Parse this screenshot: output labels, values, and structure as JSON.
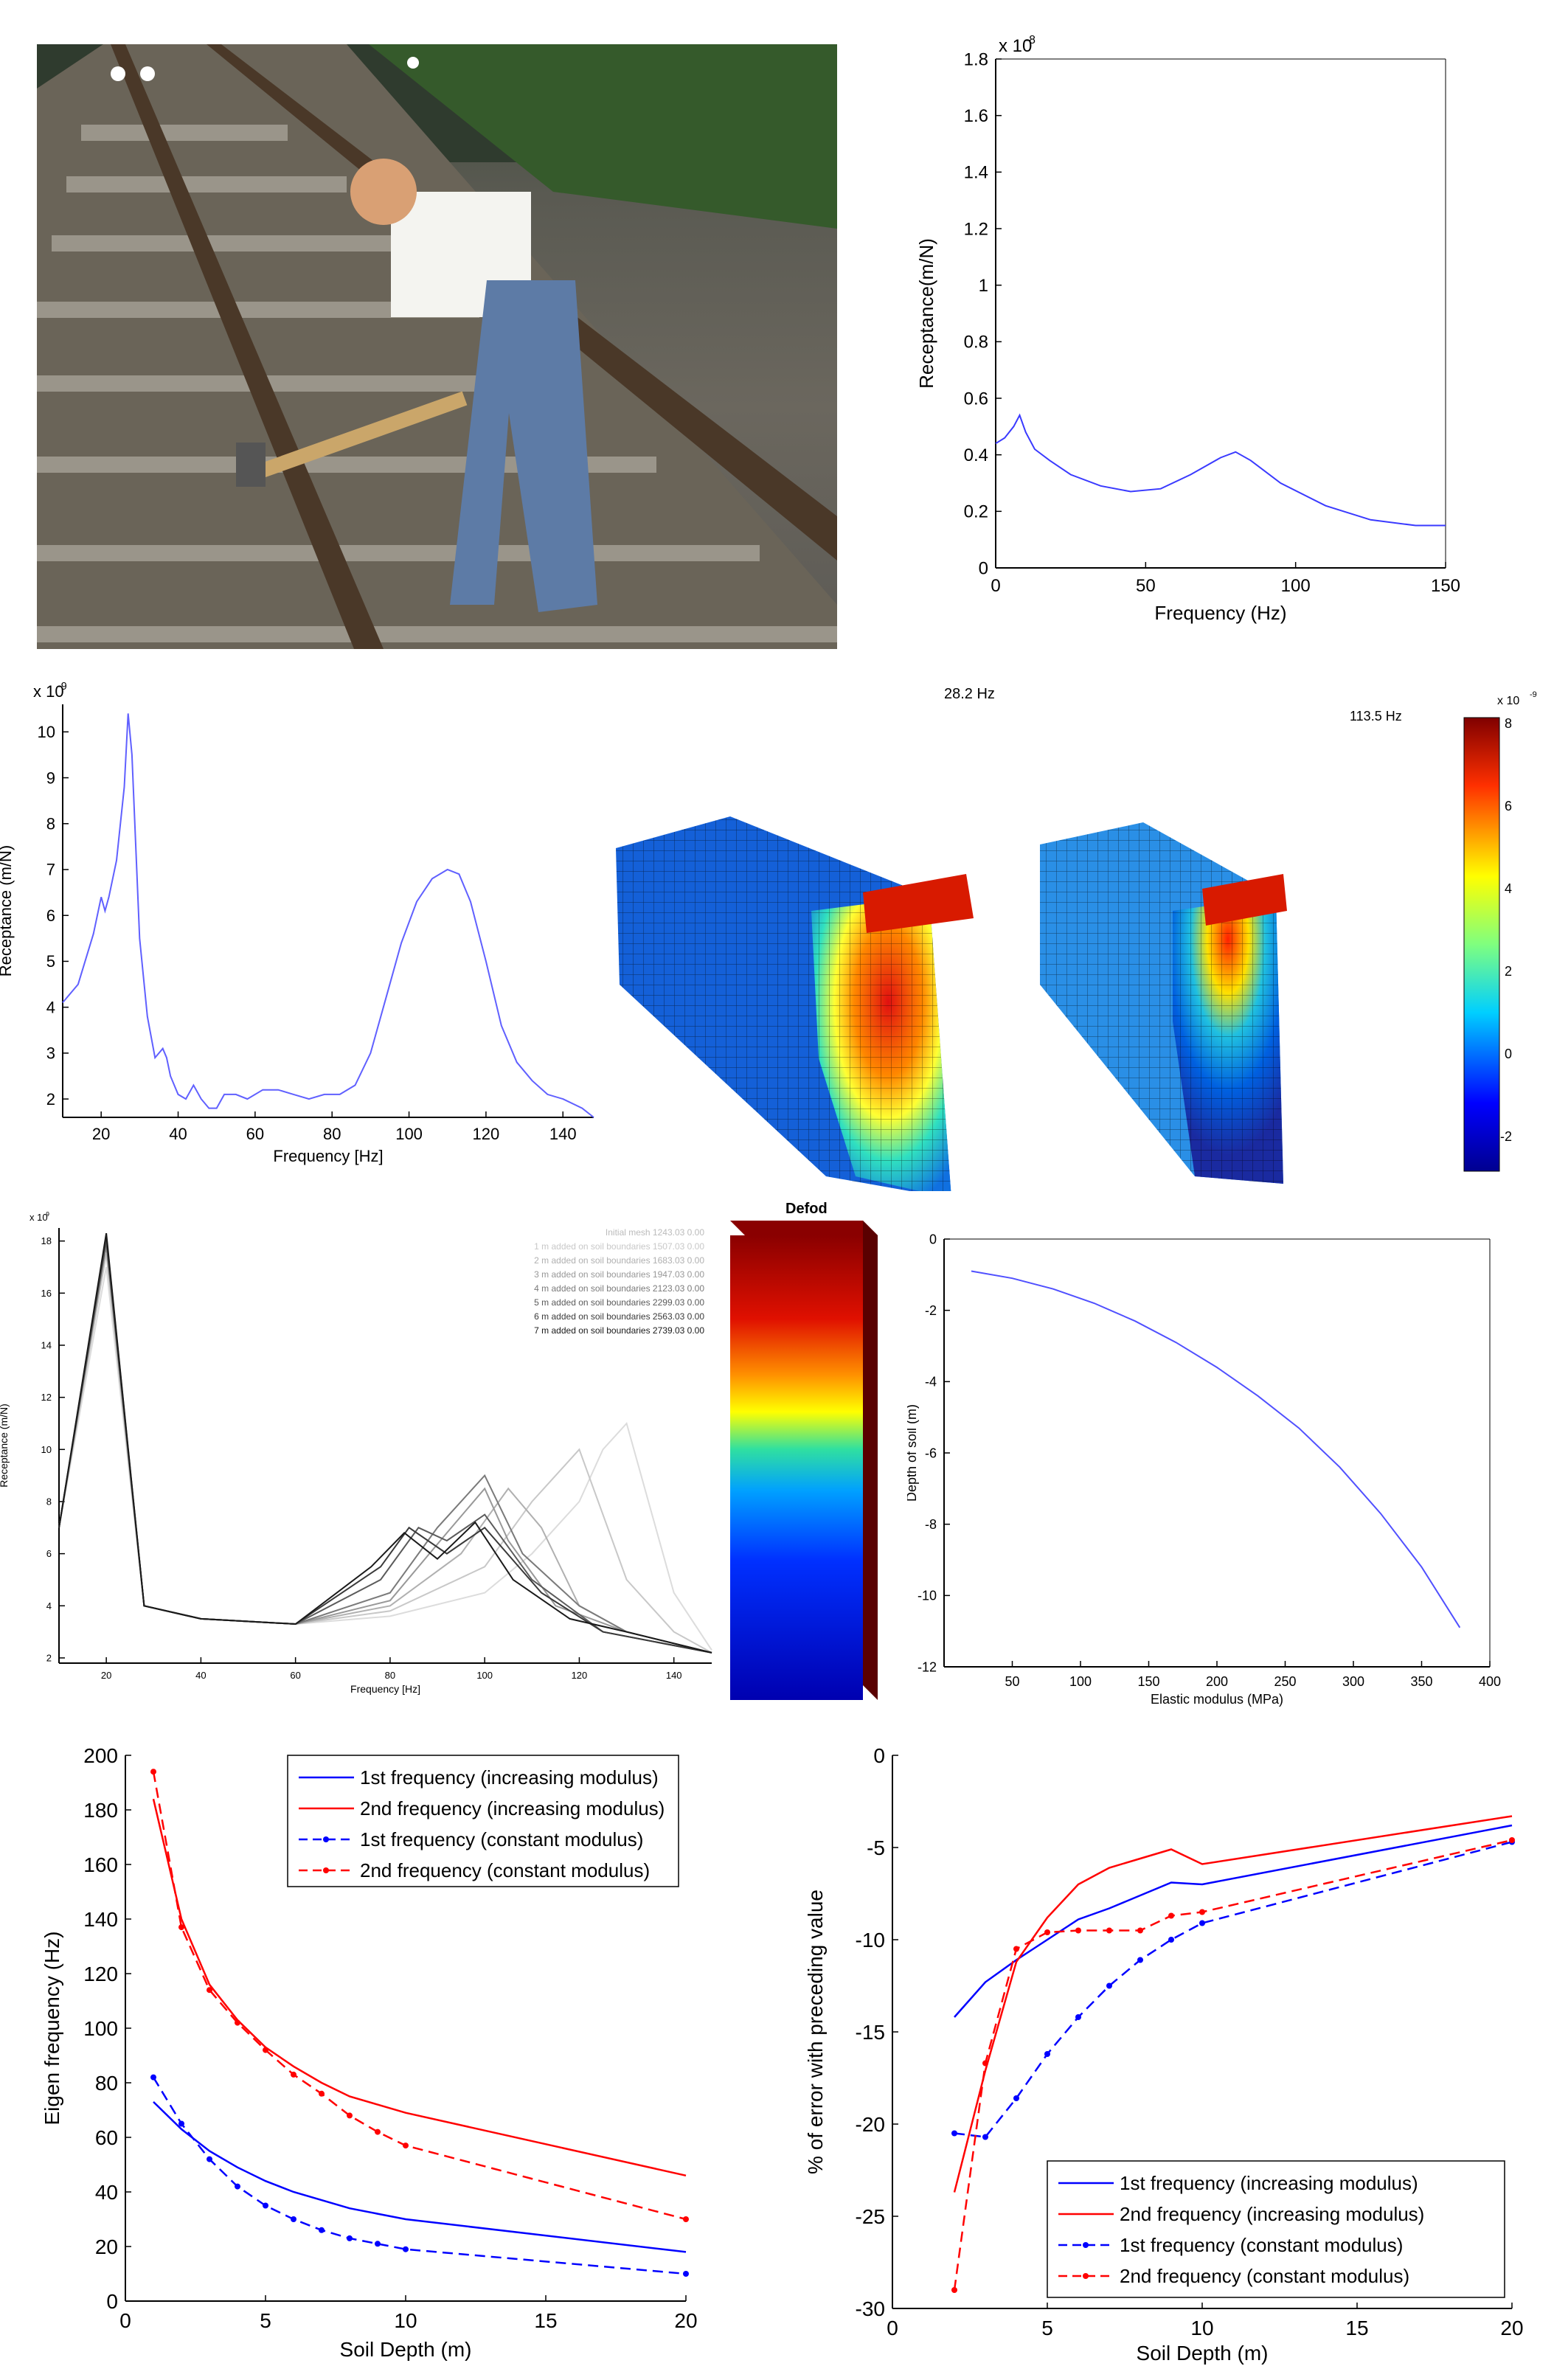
{
  "photo": {
    "description_label": ""
  },
  "charts": [
    {
      "type": "line",
      "title": "",
      "xlabel": "Frequency (Hz)",
      "ylabel": "Receptance(m/N)",
      "exponent": "x 10",
      "exponent_power": "-8",
      "xticks": [
        "0",
        "50",
        "100",
        "150"
      ],
      "yticks": [
        "0",
        "0.2",
        "0.4",
        "0.6",
        "0.8",
        "1",
        "1.2",
        "1.4",
        "1.6",
        "1.8"
      ],
      "xlim": [
        0,
        150
      ],
      "ylim": [
        0,
        1.8
      ],
      "series": [
        {
          "color": "#3a3aff",
          "x": [
            0,
            3,
            6,
            8,
            10,
            13,
            18,
            25,
            35,
            45,
            55,
            65,
            75,
            80,
            85,
            95,
            110,
            125,
            140,
            150
          ],
          "y": [
            0.44,
            0.46,
            0.5,
            0.54,
            0.48,
            0.42,
            0.38,
            0.33,
            0.29,
            0.27,
            0.28,
            0.33,
            0.39,
            0.41,
            0.38,
            0.3,
            0.22,
            0.17,
            0.15,
            0.15
          ]
        }
      ]
    },
    {
      "type": "line",
      "xlabel": "Frequency [Hz]",
      "ylabel": "Receptance (m/N)",
      "exponent": "x 10",
      "exponent_power": "-9",
      "xticks": [
        "20",
        "40",
        "60",
        "80",
        "100",
        "120",
        "140"
      ],
      "yticks": [
        "2",
        "3",
        "4",
        "5",
        "6",
        "7",
        "8",
        "9",
        "10"
      ],
      "xlim": [
        10,
        148
      ],
      "ylim": [
        1.6,
        10.6
      ],
      "series": [
        {
          "color": "#6060ff",
          "x": [
            10,
            14,
            18,
            20,
            21,
            22,
            24,
            26,
            27,
            28,
            29,
            30,
            32,
            34,
            36,
            37,
            38,
            40,
            42,
            44,
            46,
            48,
            50,
            52,
            55,
            58,
            62,
            66,
            70,
            74,
            78,
            82,
            86,
            90,
            94,
            98,
            102,
            106,
            110,
            113,
            116,
            120,
            124,
            128,
            132,
            136,
            140,
            145,
            148
          ],
          "y": [
            4.1,
            4.5,
            5.6,
            6.4,
            6.1,
            6.4,
            7.2,
            8.8,
            10.4,
            9.5,
            7.5,
            5.5,
            3.8,
            2.9,
            3.1,
            2.9,
            2.5,
            2.1,
            2.0,
            2.3,
            2.0,
            1.8,
            1.8,
            2.1,
            2.1,
            2.0,
            2.2,
            2.2,
            2.1,
            2.0,
            2.1,
            2.1,
            2.3,
            3.0,
            4.2,
            5.4,
            6.3,
            6.8,
            7.0,
            6.9,
            6.3,
            5.0,
            3.6,
            2.8,
            2.4,
            2.1,
            2.0,
            1.8,
            1.6
          ]
        }
      ]
    },
    {
      "type": "line",
      "xlabel": "Frequency [Hz]",
      "ylabel": "Receptance (m/N)",
      "exponent": "x 10",
      "exponent_power": "-9",
      "xticks": [
        "20",
        "40",
        "60",
        "80",
        "100",
        "120",
        "140"
      ],
      "yticks": [
        "2",
        "4",
        "6",
        "8",
        "10",
        "12",
        "14",
        "16",
        "18"
      ],
      "xlim": [
        10,
        148
      ],
      "ylim": [
        1.8,
        18.5
      ],
      "series": [
        {
          "name": "Initial mesh 1243.03 0.00",
          "color": "#dcdcdc",
          "x": [
            10,
            20,
            28,
            40,
            60,
            80,
            100,
            110,
            120,
            125,
            130,
            140,
            148
          ],
          "y": [
            7,
            17,
            4,
            3.5,
            3.3,
            3.6,
            4.5,
            6,
            8,
            10,
            11,
            4.5,
            2.3
          ]
        },
        {
          "name": "1 m added on soil boundaries 1507.03 0.00",
          "color": "#c8c8c8",
          "x": [
            10,
            20,
            28,
            40,
            60,
            80,
            100,
            110,
            120,
            130,
            140,
            148
          ],
          "y": [
            7,
            17.5,
            4,
            3.5,
            3.3,
            3.8,
            5.5,
            8,
            10,
            5,
            3,
            2.2
          ]
        },
        {
          "name": "2 m added on soil boundaries 1683.03 0.00",
          "color": "#b0b0b0",
          "x": [
            10,
            20,
            28,
            40,
            60,
            80,
            95,
            105,
            112,
            120,
            130,
            148
          ],
          "y": [
            7,
            18,
            4,
            3.5,
            3.3,
            4,
            6,
            8.5,
            7,
            4,
            3,
            2.2
          ]
        },
        {
          "name": "3 m added on soil boundaries 1947.03 0.00",
          "color": "#989898",
          "x": [
            10,
            20,
            28,
            40,
            60,
            80,
            92,
            100,
            105,
            115,
            130,
            148
          ],
          "y": [
            7,
            17.8,
            4,
            3.5,
            3.3,
            4.2,
            6.8,
            8.5,
            6.5,
            4,
            3,
            2.2
          ]
        },
        {
          "name": "4 m added on soil boundaries 2123.03 0.00",
          "color": "#7a7a7a",
          "x": [
            10,
            20,
            28,
            40,
            60,
            80,
            90,
            100,
            108,
            120,
            130,
            148
          ],
          "y": [
            7,
            18,
            4,
            3.5,
            3.3,
            4.5,
            7,
            9,
            6,
            4,
            3,
            2.2
          ]
        },
        {
          "name": "5 m added on soil boundaries 2299.03 0.00",
          "color": "#5a5a5a",
          "x": [
            10,
            20,
            28,
            40,
            60,
            78,
            86,
            92,
            100,
            110,
            125,
            148
          ],
          "y": [
            7,
            18,
            4,
            3.5,
            3.3,
            5,
            7,
            6.5,
            7.5,
            5,
            3,
            2.2
          ]
        },
        {
          "name": "6 m added on soil boundaries 2563.03 0.00",
          "color": "#3a3a3a",
          "x": [
            10,
            20,
            28,
            40,
            60,
            78,
            84,
            92,
            100,
            112,
            125,
            148
          ],
          "y": [
            7,
            18.2,
            4,
            3.5,
            3.3,
            5.5,
            7,
            6,
            7,
            4.5,
            3,
            2.2
          ]
        },
        {
          "name": "7 m added on soil boundaries 2739.03 0.00",
          "color": "#1a1a1a",
          "x": [
            10,
            20,
            28,
            40,
            60,
            76,
            83,
            90,
            98,
            106,
            118,
            130,
            148
          ],
          "y": [
            7,
            18.3,
            4,
            3.5,
            3.3,
            5.5,
            6.8,
            5.8,
            7.2,
            5,
            3.5,
            3,
            2.2
          ]
        }
      ]
    },
    {
      "type": "line",
      "xlabel": "Elastic modulus (MPa)",
      "ylabel": "Depth of soil (m)",
      "xticks": [
        "50",
        "100",
        "150",
        "200",
        "250",
        "300",
        "350",
        "400"
      ],
      "yticks": [
        "0",
        "-2",
        "-4",
        "-6",
        "-8",
        "-10",
        "-12"
      ],
      "xlim": [
        0,
        400
      ],
      "ylim": [
        -12,
        0
      ],
      "series": [
        {
          "color": "#5050ff",
          "x": [
            20,
            50,
            80,
            110,
            140,
            170,
            200,
            230,
            260,
            290,
            320,
            350,
            378
          ],
          "y": [
            -0.9,
            -1.1,
            -1.4,
            -1.8,
            -2.3,
            -2.9,
            -3.6,
            -4.4,
            -5.3,
            -6.4,
            -7.7,
            -9.2,
            -10.9
          ]
        }
      ]
    },
    {
      "type": "line",
      "xlabel": "Soil Depth (m)",
      "ylabel": "Eigen frequency (Hz)",
      "xticks": [
        "0",
        "5",
        "10",
        "15",
        "20"
      ],
      "yticks": [
        "0",
        "20",
        "40",
        "60",
        "80",
        "100",
        "120",
        "140",
        "160",
        "180",
        "200"
      ],
      "xlim": [
        0,
        20
      ],
      "ylim": [
        0,
        200
      ],
      "legend": "top-right",
      "series": [
        {
          "name": "1st frequency (increasing modulus)",
          "color": "#0000ff",
          "dash": false,
          "x": [
            1,
            2,
            3,
            4,
            5,
            6,
            7,
            8,
            9,
            10,
            20
          ],
          "y": [
            73,
            63,
            55,
            49,
            44,
            40,
            37,
            34,
            32,
            30,
            18
          ]
        },
        {
          "name": "2nd frequency (increasing modulus)",
          "color": "#ff0000",
          "dash": false,
          "x": [
            1,
            2,
            3,
            4,
            5,
            6,
            7,
            8,
            9,
            10,
            20
          ],
          "y": [
            184,
            140,
            116,
            103,
            93,
            86,
            80,
            75,
            72,
            69,
            46
          ]
        },
        {
          "name": "1st frequency (constant modulus)",
          "color": "#0000ff",
          "dash": true,
          "x": [
            1,
            2,
            3,
            4,
            5,
            6,
            7,
            8,
            9,
            10,
            20
          ],
          "y": [
            82,
            65,
            52,
            42,
            35,
            30,
            26,
            23,
            21,
            19,
            10
          ]
        },
        {
          "name": "2nd frequency (constant modulus)",
          "color": "#ff0000",
          "dash": true,
          "x": [
            1,
            2,
            3,
            4,
            5,
            6,
            7,
            8,
            9,
            10,
            20
          ],
          "y": [
            194,
            137,
            114,
            102,
            92,
            83,
            76,
            68,
            62,
            57,
            30
          ]
        }
      ]
    },
    {
      "type": "line",
      "xlabel": "Soil Depth (m)",
      "ylabel": "% of error with preceding value",
      "xticks": [
        "0",
        "5",
        "10",
        "15",
        "20"
      ],
      "yticks": [
        "0",
        "-5",
        "-10",
        "-15",
        "-20",
        "-25",
        "-30"
      ],
      "xlim": [
        0,
        20
      ],
      "ylim": [
        -30,
        0
      ],
      "legend": "bottom-right",
      "series": [
        {
          "name": "1st frequency (increasing modulus)",
          "color": "#0000ff",
          "dash": false,
          "x": [
            2,
            3,
            4,
            5,
            6,
            7,
            8,
            9,
            10,
            20
          ],
          "y": [
            -14.2,
            -12.3,
            -11.1,
            -10,
            -8.9,
            -8.3,
            -7.6,
            -6.9,
            -7,
            -3.8
          ]
        },
        {
          "name": "2nd frequency (increasing modulus)",
          "color": "#ff0000",
          "dash": false,
          "x": [
            2,
            3,
            4,
            5,
            6,
            7,
            8,
            9,
            10,
            20
          ],
          "y": [
            -23.7,
            -17.1,
            -11.2,
            -8.8,
            -7,
            -6.1,
            -5.6,
            -5.1,
            -5.9,
            -3.3
          ]
        },
        {
          "name": "1st frequency (constant modulus)",
          "color": "#0000ff",
          "dash": true,
          "x": [
            2,
            3,
            4,
            5,
            6,
            7,
            8,
            9,
            10,
            20
          ],
          "y": [
            -20.5,
            -20.7,
            -18.6,
            -16.2,
            -14.2,
            -12.5,
            -11.1,
            -10,
            -9.1,
            -4.7
          ]
        },
        {
          "name": "2nd frequency (constant modulus)",
          "color": "#ff0000",
          "dash": true,
          "x": [
            2,
            3,
            4,
            5,
            6,
            7,
            8,
            9,
            10,
            20
          ],
          "y": [
            -29,
            -16.7,
            -10.5,
            -9.6,
            -9.5,
            -9.5,
            -9.5,
            -8.7,
            -8.5,
            -4.6
          ]
        }
      ]
    }
  ],
  "fem": {
    "label_left": "28.2 Hz",
    "label_right": "113.5 Hz",
    "colorbar_exponent": "x 10",
    "colorbar_power": "-9",
    "colorbar_ticks": [
      "8",
      "6",
      "4",
      "2",
      "0",
      "-2"
    ],
    "column_label": "Defod"
  }
}
